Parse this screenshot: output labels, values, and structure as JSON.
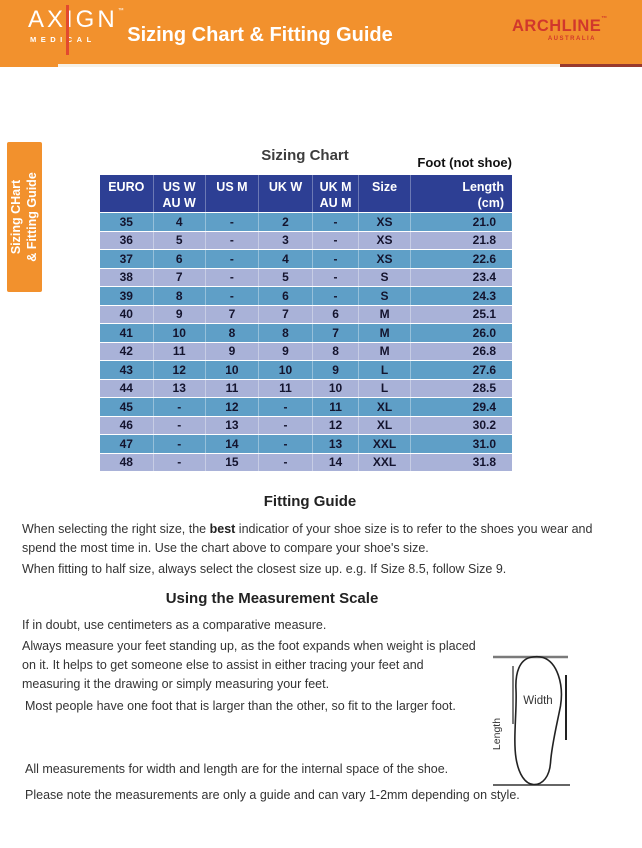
{
  "header": {
    "axign": {
      "name": "AXIGN",
      "tm": "™",
      "sub": "MEDICAL"
    },
    "title": "Sizing Chart & Fitting Guide",
    "archline": {
      "name": "ARCHLINE",
      "tm": "™",
      "sub": "AUSTRALIA"
    }
  },
  "side_tab": {
    "line1": "Sizing CHart",
    "line2": "& Fitting Guide"
  },
  "sizing_chart": {
    "title": "Sizing Chart",
    "foot_label": "Foot (not shoe)",
    "columns": [
      {
        "l1": "EURO",
        "l2": ""
      },
      {
        "l1": "US W",
        "l2": "AU W"
      },
      {
        "l1": "US M",
        "l2": ""
      },
      {
        "l1": "UK W",
        "l2": ""
      },
      {
        "l1": "UK M",
        "l2": "AU M"
      },
      {
        "l1": "Size",
        "l2": ""
      },
      {
        "l1": "Length",
        "l2": "(cm)"
      }
    ],
    "rows": [
      [
        "35",
        "4",
        "-",
        "2",
        "-",
        "XS",
        "21.0"
      ],
      [
        "36",
        "5",
        "-",
        "3",
        "-",
        "XS",
        "21.8"
      ],
      [
        "37",
        "6",
        "-",
        "4",
        "-",
        "XS",
        "22.6"
      ],
      [
        "38",
        "7",
        "-",
        "5",
        "-",
        "S",
        "23.4"
      ],
      [
        "39",
        "8",
        "-",
        "6",
        "-",
        "S",
        "24.3"
      ],
      [
        "40",
        "9",
        "7",
        "7",
        "6",
        "M",
        "25.1"
      ],
      [
        "41",
        "10",
        "8",
        "8",
        "7",
        "M",
        "26.0"
      ],
      [
        "42",
        "11",
        "9",
        "9",
        "8",
        "M",
        "26.8"
      ],
      [
        "43",
        "12",
        "10",
        "10",
        "9",
        "L",
        "27.6"
      ],
      [
        "44",
        "13",
        "11",
        "11",
        "10",
        "L",
        "28.5"
      ],
      [
        "45",
        "-",
        "12",
        "-",
        "11",
        "XL",
        "29.4"
      ],
      [
        "46",
        "-",
        "13",
        "-",
        "12",
        "XL",
        "30.2"
      ],
      [
        "47",
        "-",
        "14",
        "-",
        "13",
        "XXL",
        "31.0"
      ],
      [
        "48",
        "-",
        "15",
        "-",
        "14",
        "XXL",
        "31.8"
      ]
    ]
  },
  "fitting_guide": {
    "heading": "Fitting Guide",
    "p1_pre": "When selecting the right size, the ",
    "p1_bold": "best",
    "p1_post": " indicatior of your shoe size is to refer to the shoes you wear and spend the most time in. Use the chart above to compare your shoe's size.",
    "p2": "When fitting to half size, always select the closest size up. e.g. If Size 8.5, follow Size 9."
  },
  "measurement": {
    "heading": "Using the Measurement Scale",
    "p1": "If in doubt, use centimeters as a comparative measure.",
    "p2": "Always measure your feet standing up, as the foot expands when weight is placed on it. It helps to get someone else to assist in either tracing your feet and measuring it the drawing or simply measuring your feet.",
    "p3": "Most people have one foot that is larger than the other, so fit to the larger foot.",
    "p4": "All measurements for width and length are for the internal space of the shoe.",
    "p5": "Please note the measurements are only a guide and can vary 1-2mm depending on style."
  },
  "diagram": {
    "length_label": "Length",
    "width_label": "Width"
  },
  "colors": {
    "orange": "#F2912D",
    "navy_header": "#2D3F94",
    "row_teal": "#5F9FC7",
    "row_lavender": "#A9B2D8",
    "archline_red": "#D1372C",
    "maroon_rule": "#993A2E"
  }
}
